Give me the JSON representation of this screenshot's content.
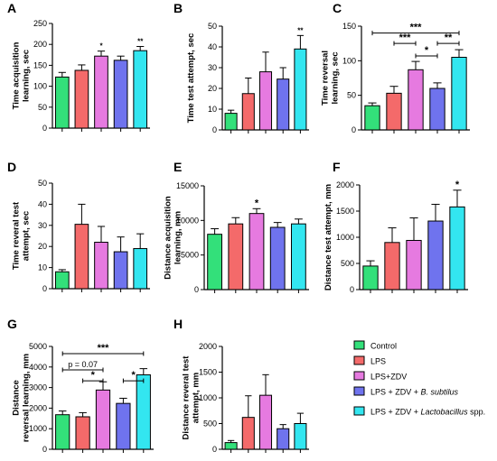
{
  "colors": {
    "Control": "#33e07a",
    "LPS": "#f46a6a",
    "LPS+ZDV": "#e67ae0",
    "LPS + ZDV + B. subtilus": "#6f73ee",
    "LPS + ZDV + Lactobacillus spp.": "#33e6f0"
  },
  "legend": {
    "items": [
      {
        "key": "Control",
        "parts": [
          {
            "t": "Control",
            "i": false
          }
        ]
      },
      {
        "key": "LPS",
        "parts": [
          {
            "t": "LPS",
            "i": false
          }
        ]
      },
      {
        "key": "LPS+ZDV",
        "parts": [
          {
            "t": "LPS+ZDV",
            "i": false
          }
        ]
      },
      {
        "key": "LPS + ZDV + B. subtilus",
        "parts": [
          {
            "t": "LPS + ZDV + ",
            "i": false
          },
          {
            "t": "B. subtilus",
            "i": true
          }
        ]
      },
      {
        "key": "LPS + ZDV + Lactobacillus spp.",
        "parts": [
          {
            "t": "LPS + ZDV + ",
            "i": false
          },
          {
            "t": "Lactobacillus",
            "i": true
          },
          {
            "t": " spp.",
            "i": false
          }
        ]
      }
    ]
  },
  "chart_data": [
    {
      "type": "bar",
      "panel": "A",
      "ylabel": [
        "Time acquisition",
        "learning, sec"
      ],
      "ylim": [
        0,
        250
      ],
      "yticks": [
        0,
        50,
        100,
        150,
        200,
        250
      ],
      "values": [
        122,
        138,
        172,
        162,
        185
      ],
      "errors": [
        11,
        13,
        12,
        10,
        10
      ],
      "stars": [
        "",
        "",
        "*",
        "",
        "**"
      ],
      "brackets": []
    },
    {
      "type": "bar",
      "panel": "B",
      "ylabel": [
        "Time test attempt, sec"
      ],
      "ylim": [
        0,
        50
      ],
      "yticks": [
        0,
        10,
        20,
        30,
        40,
        50
      ],
      "values": [
        8,
        17.5,
        28,
        24.5,
        39
      ],
      "errors": [
        1.5,
        7.5,
        9.5,
        5.5,
        6.5
      ],
      "stars": [
        "",
        "",
        "",
        "",
        "**"
      ],
      "brackets": []
    },
    {
      "type": "bar",
      "panel": "C",
      "ylabel": [
        "Time reversal",
        "learning, sec"
      ],
      "ylim": [
        0,
        150
      ],
      "yticks": [
        0,
        50,
        100,
        150
      ],
      "values": [
        35,
        53,
        87,
        60,
        105
      ],
      "errors": [
        4,
        10,
        12,
        8,
        11
      ],
      "stars": [
        "",
        "",
        "",
        "",
        ""
      ],
      "brackets": [
        {
          "from": 0,
          "to": 4,
          "y": 140,
          "text": "***"
        },
        {
          "from": 1,
          "to": 2,
          "y": 125,
          "text": "***"
        },
        {
          "from": 2,
          "to": 3,
          "y": 107,
          "text": "*"
        },
        {
          "from": 3,
          "to": 4,
          "y": 125,
          "text": "**"
        }
      ]
    },
    {
      "type": "bar",
      "panel": "D",
      "ylabel": [
        "Time reveral test",
        "attempt, sec"
      ],
      "ylim": [
        0,
        50
      ],
      "yticks": [
        0,
        10,
        20,
        30,
        40,
        50
      ],
      "values": [
        8,
        30.5,
        22,
        17.5,
        19
      ],
      "errors": [
        1,
        9.5,
        7.5,
        7,
        7
      ],
      "stars": [
        "",
        "",
        "",
        "",
        ""
      ],
      "brackets": []
    },
    {
      "type": "bar",
      "panel": "E",
      "ylabel": [
        "Distance acquisition",
        "learning, mm"
      ],
      "ylim": [
        0,
        15000
      ],
      "yticks": [
        0,
        5000,
        10000,
        15000
      ],
      "values": [
        8000,
        9500,
        11000,
        9000,
        9500
      ],
      "errors": [
        800,
        900,
        700,
        700,
        700
      ],
      "stars": [
        "",
        "",
        "*",
        "",
        ""
      ],
      "brackets": []
    },
    {
      "type": "bar",
      "panel": "F",
      "ylabel": [
        "Distance test attempt, mm"
      ],
      "ylim": [
        0,
        2000
      ],
      "yticks": [
        0,
        500,
        1000,
        1500,
        2000
      ],
      "values": [
        450,
        900,
        940,
        1310,
        1580
      ],
      "errors": [
        100,
        280,
        430,
        320,
        320
      ],
      "stars": [
        "",
        "",
        "",
        "",
        "*"
      ],
      "brackets": []
    },
    {
      "type": "bar",
      "panel": "G",
      "ylabel": [
        "Distance",
        "reversal learning, mm"
      ],
      "ylim": [
        0,
        5000
      ],
      "yticks": [
        0,
        1000,
        2000,
        3000,
        4000,
        5000
      ],
      "values": [
        1680,
        1580,
        2880,
        2230,
        3620
      ],
      "errors": [
        180,
        200,
        400,
        250,
        300
      ],
      "stars": [
        "",
        "",
        "",
        "",
        ""
      ],
      "brackets": [
        {
          "from": 0,
          "to": 4,
          "y": 4650,
          "text": "***"
        },
        {
          "from": 0,
          "to": 2,
          "y": 3860,
          "text": "p = 0.07"
        },
        {
          "from": 1,
          "to": 2,
          "y": 3330,
          "text": "*"
        },
        {
          "from": 3,
          "to": 4,
          "y": 3330,
          "text": "*"
        }
      ]
    },
    {
      "type": "bar",
      "panel": "H",
      "ylabel": [
        "Distance reveral test",
        "attempt, mm"
      ],
      "ylim": [
        0,
        2000
      ],
      "yticks": [
        0,
        500,
        1000,
        1500,
        2000
      ],
      "values": [
        130,
        620,
        1050,
        400,
        500
      ],
      "errors": [
        40,
        420,
        400,
        80,
        200
      ],
      "stars": [
        "",
        "",
        "",
        "",
        ""
      ],
      "brackets": []
    }
  ]
}
